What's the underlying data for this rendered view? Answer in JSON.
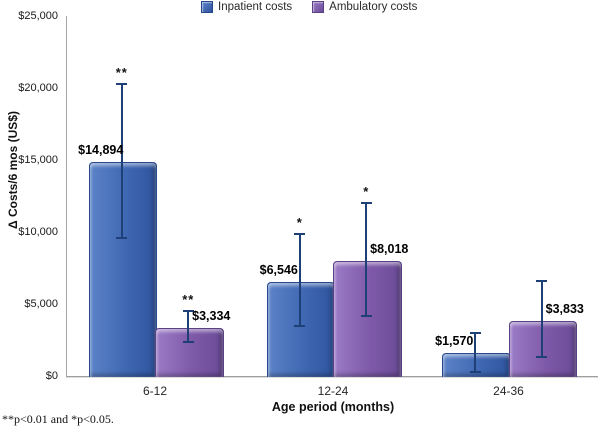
{
  "figure": {
    "footnote": "**p<0.01 and *p<0.05."
  },
  "chart_data": {
    "type": "bar",
    "title": "",
    "categories": [
      "6-12",
      "12-24",
      "24-36"
    ],
    "series": [
      {
        "name": "Inpatient costs",
        "color": "#3F68B2",
        "color_light": "#5C83C8",
        "color_dark": "#2F549E",
        "border": "#27488C",
        "values": [
          14894,
          6546,
          1570
        ],
        "labels": [
          "$14,894",
          "$6,546",
          "$1,570"
        ],
        "error_low": [
          9500,
          3400,
          200
        ],
        "error_high": [
          20350,
          9900,
          3050
        ],
        "significance": [
          "**",
          "*",
          ""
        ]
      },
      {
        "name": "Ambulatory costs",
        "color": "#7E59A9",
        "color_light": "#9B7BC6",
        "color_dark": "#6A4B97",
        "border": "#5A4183",
        "values": [
          3334,
          8018,
          3833
        ],
        "labels": [
          "$3,334",
          "$8,018",
          "$3,833"
        ],
        "error_low": [
          2300,
          4100,
          1250
        ],
        "error_high": [
          4600,
          12100,
          6650
        ],
        "significance": [
          "**",
          "*",
          ""
        ]
      }
    ],
    "error_color": "#1F3F77",
    "xlabel": "Age period (months)",
    "ylabel": "Δ Costs/6 mos (US$)",
    "ylim": [
      0,
      25000
    ],
    "y_tick_interval": 5000,
    "y_tick_labels": [
      "$0",
      "$5,000",
      "$10,000",
      "$15,000",
      "$20,000",
      "$25,000"
    ],
    "grid": false,
    "legend_position": "top-center"
  }
}
